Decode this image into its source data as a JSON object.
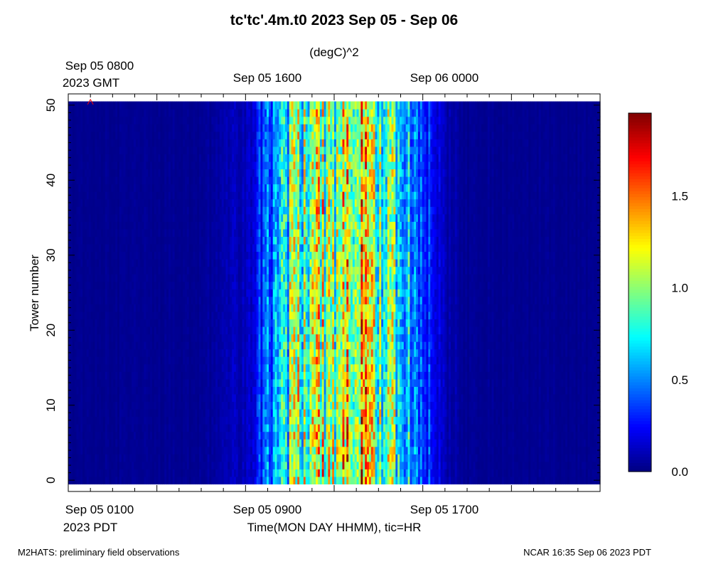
{
  "chart_data": {
    "type": "heatmap",
    "title": "tc'tc'.4m.t0 2023 Sep 05 - Sep 06",
    "units": "(degC)^2",
    "ylabel": "Tower number",
    "xlabel": "Time(MON DAY HHMM), tic=HR",
    "top_axis": {
      "labels": [
        {
          "line1": "Sep 05 0800",
          "line2": "2023 GMT"
        },
        {
          "line1": "Sep 05 1600",
          "line2": ""
        },
        {
          "line1": "Sep 06 0000",
          "line2": ""
        }
      ]
    },
    "bottom_axis": {
      "labels": [
        {
          "line1": "Sep 05 0100",
          "line2": "2023 PDT"
        },
        {
          "line1": "Sep 05 0900",
          "line2": ""
        },
        {
          "line1": "Sep 05 1700",
          "line2": ""
        }
      ]
    },
    "ylim": [
      -1.5,
      51.5
    ],
    "y_ticks": [
      0,
      10,
      20,
      30,
      40,
      50
    ],
    "towers": [
      0,
      50
    ],
    "time_range_hours_pdt": [
      0,
      24
    ],
    "colorbar": {
      "range": [
        0.0,
        1.95
      ],
      "ticks": [
        {
          "value": 0.0,
          "label": "0.0"
        },
        {
          "value": 0.5,
          "label": "0.5"
        },
        {
          "value": 1.0,
          "label": "1.0"
        },
        {
          "value": 1.5,
          "label": "1.5"
        }
      ],
      "colormap": "jet"
    },
    "variance_profile": [
      {
        "hour_pdt": 0,
        "value": 0.03
      },
      {
        "hour_pdt": 6,
        "value": 0.04
      },
      {
        "hour_pdt": 8,
        "value": 0.12
      },
      {
        "hour_pdt": 9,
        "value": 0.45
      },
      {
        "hour_pdt": 10,
        "value": 0.85
      },
      {
        "hour_pdt": 12,
        "value": 1.1
      },
      {
        "hour_pdt": 14,
        "value": 1.05
      },
      {
        "hour_pdt": 15,
        "value": 0.75
      },
      {
        "hour_pdt": 16,
        "value": 0.4
      },
      {
        "hour_pdt": 17,
        "value": 0.1
      },
      {
        "hour_pdt": 18,
        "value": 0.04
      },
      {
        "hour_pdt": 24,
        "value": 0.03
      }
    ],
    "marker": {
      "symbol": "^",
      "color": "#ff0000",
      "hour_pdt": 0,
      "tower": 50
    }
  },
  "footer": {
    "left": "M2HATS: preliminary field observations",
    "right": "NCAR 16:35 Sep 06 2023 PDT"
  }
}
